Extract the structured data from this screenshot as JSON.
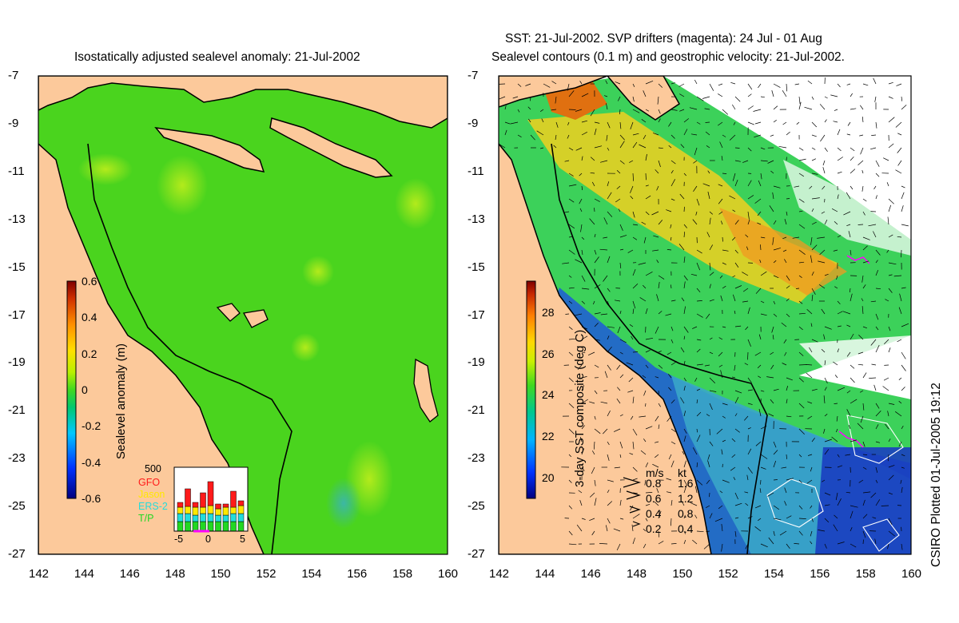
{
  "titles": {
    "left": "Isostatically adjusted sealevel anomaly: 21-Jul-2002",
    "right_line1": "SST: 21-Jul-2002. SVP drifters (magenta): 24 Jul - 01 Aug",
    "right_line2": "Sealevel contours (0.1 m) and geostrophic velocity: 21-Jul-2002."
  },
  "axes": {
    "y_ticks": [
      "-7",
      "-9",
      "-11",
      "-13",
      "-15",
      "-17",
      "-19",
      "-21",
      "-23",
      "-25",
      "-27"
    ],
    "x_ticks": [
      "142",
      "144",
      "146",
      "148",
      "150",
      "152",
      "154",
      "156",
      "158",
      "160"
    ],
    "lon_range": [
      142,
      160
    ],
    "lat_range": [
      -27,
      -7
    ]
  },
  "left_colorbar": {
    "label": "Sealevel anomaly (m)",
    "ticks": [
      "0.6",
      "0.4",
      "0.2",
      "0",
      "-0.2",
      "-0.4",
      "-0.6"
    ],
    "range": [
      -0.6,
      0.6
    ]
  },
  "right_colorbar": {
    "label": "3-day SST composite (deg C)",
    "ticks": [
      "28",
      "26",
      "24",
      "22",
      "20"
    ],
    "range": [
      19,
      29.5
    ]
  },
  "inset": {
    "top_label": "500",
    "legend": [
      {
        "name": "GFO",
        "color": "#ff1a1a"
      },
      {
        "name": "Jason",
        "color": "#ffe800"
      },
      {
        "name": "ERS-2",
        "color": "#22dcdc"
      },
      {
        "name": "T/P",
        "color": "#22d822"
      }
    ],
    "x_ticks": [
      "-5",
      "0",
      "5"
    ]
  },
  "velocity_key": {
    "header_ms": "m/s",
    "header_kt": "kt",
    "rows": [
      {
        "ms": "0.8",
        "kt": "1.6"
      },
      {
        "ms": "0.6",
        "kt": "1.2"
      },
      {
        "ms": "0.4",
        "kt": "0.8"
      },
      {
        "ms": "0.2",
        "kt": "0.4"
      }
    ]
  },
  "footer": "CSIRO Plotted 01-Jul-2005 19:12",
  "colors": {
    "land": "#fcc99b",
    "sla_green": "#4ad41e",
    "sla_light": "#7fe61c",
    "sst_blue": "#1e5ad8",
    "sst_cyan": "#3aa6c8",
    "sst_green": "#3cd15a",
    "sst_yellow": "#f0d020",
    "drifter": "#ff00ff"
  }
}
